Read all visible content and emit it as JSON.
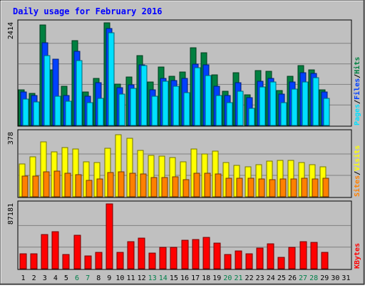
{
  "title": "Daily usage for February 2016",
  "colors": {
    "frame_bg": "#c0c0c0",
    "plot_bg": "#c0c0c0",
    "title": "#0000ff",
    "hits": "#008040",
    "files": "#0040ff",
    "pages": "#00e0ff",
    "visits": "#ffff00",
    "sites": "#ff8000",
    "kbytes": "#ff0000",
    "weekend_label": "#00804a"
  },
  "chart_data": {
    "type": "bar",
    "x": [
      1,
      2,
      3,
      4,
      5,
      6,
      7,
      8,
      9,
      10,
      11,
      12,
      13,
      14,
      15,
      16,
      17,
      18,
      19,
      20,
      21,
      22,
      23,
      24,
      25,
      26,
      27,
      28,
      29,
      30,
      31
    ],
    "weekend_days": [
      6,
      7,
      13,
      14,
      20,
      21,
      27,
      28
    ],
    "panels": [
      {
        "id": "hits-files-pages",
        "ytick": "2414",
        "ymax": 2414,
        "axis_labels": [
          {
            "text": "Pages",
            "color": "#00e0ff"
          },
          {
            "text": "/",
            "color": "#000000"
          },
          {
            "text": "Files",
            "color": "#0040ff"
          },
          {
            "text": "/",
            "color": "#000000"
          },
          {
            "text": "Hits",
            "color": "#008040"
          }
        ],
        "series": [
          {
            "name": "Hits",
            "color": "#008040",
            "values": [
              830,
              750,
              2360,
              1300,
              930,
              2000,
              780,
              1100,
              2414,
              980,
              1140,
              1640,
              1020,
              1370,
              1150,
              1260,
              1830,
              1710,
              1190,
              810,
              1240,
              720,
              1290,
              1270,
              820,
              1150,
              1400,
              1300,
              830,
              null,
              null
            ]
          },
          {
            "name": "Files",
            "color": "#0040ff",
            "values": [
              790,
              700,
              1950,
              1560,
              700,
              1750,
              680,
              1010,
              2280,
              890,
              950,
              1430,
              830,
              1110,
              1060,
              1110,
              1440,
              1420,
              930,
              700,
              1000,
              650,
              1040,
              1100,
              730,
              1030,
              1240,
              1220,
              790,
              null,
              null
            ]
          },
          {
            "name": "Pages",
            "color": "#00e0ff",
            "values": [
              620,
              550,
              1650,
              680,
              570,
              1520,
              530,
              640,
              2180,
              740,
              880,
              1400,
              690,
              1040,
              920,
              770,
              1360,
              1170,
              710,
              540,
              800,
              400,
              900,
              1020,
              530,
              860,
              1030,
              1130,
              630,
              null,
              null
            ]
          }
        ]
      },
      {
        "id": "visits-sites",
        "ytick": "378",
        "ymax": 378,
        "axis_labels": [
          {
            "text": "Sites",
            "color": "#ff8000"
          },
          {
            "text": "/",
            "color": "#000000"
          },
          {
            "text": "Visits",
            "color": "#ffff00"
          }
        ],
        "series": [
          {
            "name": "Visits",
            "color": "#ffff00",
            "values": [
              195,
              235,
              325,
              265,
              290,
              280,
              205,
              200,
              285,
              366,
              345,
              275,
              245,
              240,
              230,
              205,
              280,
              250,
              270,
              200,
              185,
              175,
              190,
              210,
              215,
              215,
              200,
              190,
              178,
              null,
              null
            ]
          },
          {
            "name": "Sites",
            "color": "#ff8000",
            "values": [
              122,
              120,
              148,
              150,
              140,
              130,
              96,
              106,
              142,
              145,
              140,
              135,
              115,
              113,
              116,
              100,
              137,
              140,
              134,
              110,
              110,
              108,
              106,
              102,
              103,
              105,
              108,
              103,
              108,
              null,
              null
            ]
          }
        ]
      },
      {
        "id": "kbytes",
        "ytick": "87181",
        "ymax": 87181,
        "axis_labels": [
          {
            "text": "KBytes",
            "color": "#ff0000"
          }
        ],
        "series": [
          {
            "name": "KBytes",
            "color": "#ff0000",
            "values": [
              20500,
              19800,
              46000,
              50000,
              19200,
              45500,
              17700,
              22400,
              87181,
              22200,
              36200,
              40800,
              20700,
              29200,
              28300,
              38600,
              39100,
              42000,
              34900,
              19500,
              24000,
              19800,
              28200,
              34000,
              15300,
              28700,
              36200,
              35500,
              22100,
              null,
              null
            ]
          }
        ]
      }
    ]
  }
}
